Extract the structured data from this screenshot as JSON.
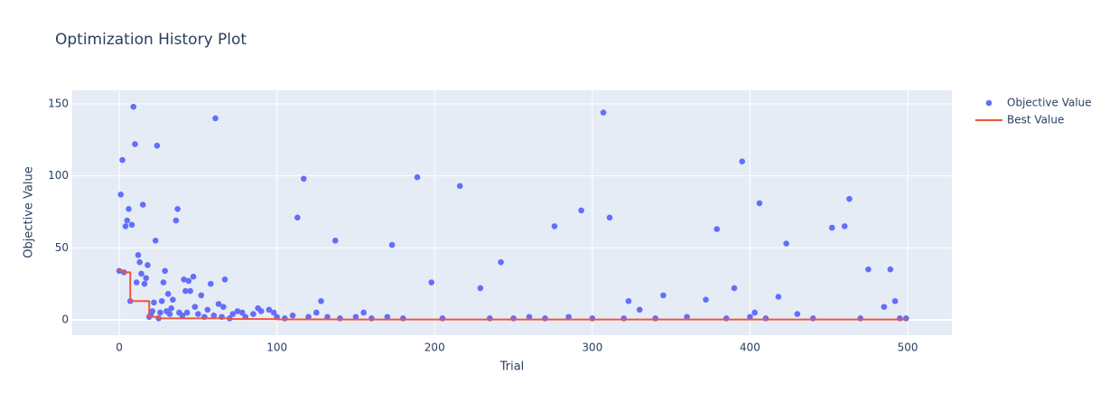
{
  "chart_data": {
    "type": "scatter",
    "title": "Optimization History Plot",
    "x_label": "Trial",
    "y_label": "Objective Value",
    "xlim": [
      -29.8,
      528
    ],
    "ylim": [
      -10.7,
      159.4
    ],
    "xticks": [
      0,
      100,
      200,
      300,
      400,
      500
    ],
    "yticks": [
      0,
      50,
      100,
      150
    ],
    "grid": true,
    "legend": "right",
    "series": [
      {
        "name": "Objective Value",
        "color": "#636efa",
        "mode": "markers",
        "x": [
          0,
          1,
          2,
          3,
          4,
          5,
          6,
          7,
          8,
          9,
          10,
          11,
          12,
          13,
          14,
          15,
          16,
          17,
          18,
          19,
          20,
          21,
          22,
          23,
          24,
          25,
          26,
          27,
          28,
          29,
          30,
          31,
          32,
          33,
          34,
          36,
          37,
          38,
          40,
          41,
          42,
          43,
          44,
          45,
          47,
          48,
          50,
          52,
          54,
          56,
          58,
          60,
          61,
          63,
          65,
          66,
          67,
          70,
          72,
          75,
          78,
          80,
          85,
          88,
          90,
          95,
          98,
          100,
          105,
          110,
          113,
          117,
          120,
          125,
          128,
          132,
          137,
          140,
          150,
          155,
          160,
          170,
          173,
          180,
          189,
          198,
          205,
          216,
          229,
          235,
          242,
          250,
          260,
          270,
          276,
          285,
          293,
          300,
          307,
          311,
          320,
          323,
          330,
          340,
          345,
          360,
          372,
          379,
          385,
          390,
          395,
          400,
          403,
          406,
          410,
          418,
          423,
          430,
          440,
          452,
          460,
          463,
          470,
          475,
          485,
          489,
          492,
          495,
          499
        ],
        "values": [
          34,
          87,
          111,
          33,
          65,
          69,
          77,
          13,
          66,
          148,
          122,
          26,
          45,
          40,
          32,
          80,
          25,
          29,
          38,
          2,
          4,
          6,
          12,
          55,
          121,
          1,
          5,
          13,
          26,
          34,
          6,
          18,
          4,
          8,
          14,
          69,
          77,
          5,
          3,
          28,
          20,
          5,
          27,
          20,
          30,
          9,
          4,
          17,
          2,
          7,
          25,
          3,
          140,
          11,
          2,
          9,
          28,
          1,
          4,
          6,
          5,
          2,
          4,
          8,
          6,
          7,
          5,
          2,
          1,
          3,
          71,
          98,
          2,
          5,
          13,
          2,
          55,
          1,
          2,
          5,
          1,
          2,
          52,
          1,
          99,
          26,
          1,
          93,
          22,
          1,
          40,
          1,
          2,
          1,
          65,
          2,
          76,
          1,
          144,
          71,
          1,
          13,
          7,
          1,
          17,
          2,
          14,
          63,
          1,
          22,
          110,
          2,
          5,
          81,
          1,
          16,
          53,
          4,
          1,
          64,
          65,
          84,
          1,
          35,
          9,
          35,
          13,
          1,
          1
        ]
      },
      {
        "name": "Best Value",
        "color": "#ef553b",
        "mode": "step",
        "x": [
          0,
          3,
          7,
          19,
          25,
          70,
          100,
          140,
          499
        ],
        "values": [
          34,
          33,
          13,
          2,
          1,
          0.5,
          0.3,
          0.2,
          0.2
        ]
      }
    ]
  }
}
